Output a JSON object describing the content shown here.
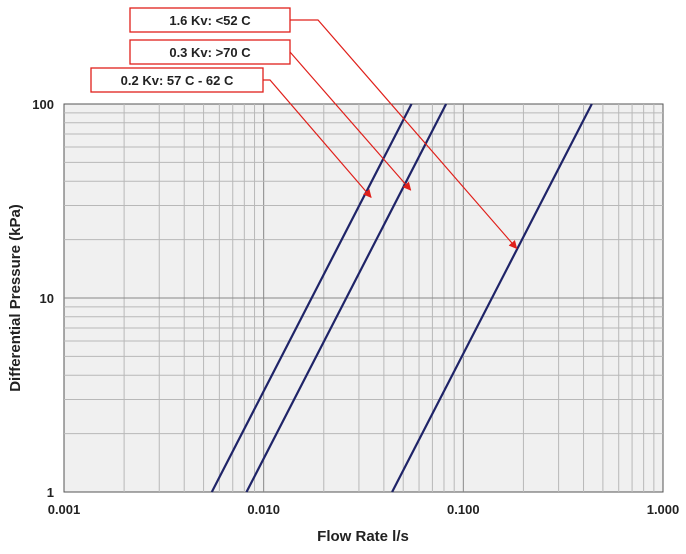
{
  "chart_data": {
    "type": "line",
    "xlabel": "Flow Rate l/s",
    "ylabel": "Differential Pressure (kPa)",
    "xscale": "log",
    "yscale": "log",
    "xlim": [
      0.001,
      1.0
    ],
    "ylim": [
      1,
      100
    ],
    "x_ticks": [
      0.001,
      0.01,
      0.1,
      1.0
    ],
    "x_tick_labels": [
      "0.001",
      "0.010",
      "0.100",
      "1.000"
    ],
    "y_ticks": [
      1,
      10,
      100
    ],
    "y_tick_labels": [
      "1",
      "10",
      "100"
    ],
    "grid": true,
    "series": [
      {
        "name": "0.2 Kv: 57 C - 62 C",
        "color": "#1f2468",
        "points": [
          [
            0.0055,
            1
          ],
          [
            0.055,
            100
          ]
        ]
      },
      {
        "name": "0.3 Kv: >70 C",
        "color": "#1f2468",
        "points": [
          [
            0.0082,
            1
          ],
          [
            0.082,
            100
          ]
        ]
      },
      {
        "name": "1.6 Kv: <52 C",
        "color": "#1f2468",
        "points": [
          [
            0.044,
            1
          ],
          [
            0.44,
            100
          ]
        ]
      }
    ],
    "annotations": [
      {
        "text": "1.6 Kv: <52 C",
        "target": [
          0.185,
          18
        ]
      },
      {
        "text": "0.3 Kv: >70 C",
        "target": [
          0.0545,
          36
        ]
      },
      {
        "text": "0.2 Kv: 57 C - 62 C",
        "target": [
          0.0345,
          33
        ]
      }
    ],
    "annotation_color": "#e0201b"
  }
}
